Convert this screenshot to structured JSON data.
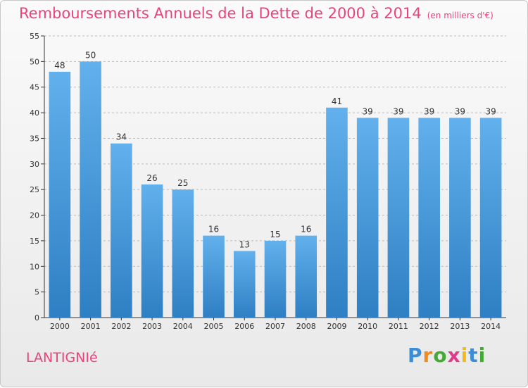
{
  "title": "Remboursements Annuels de la Dette de 2000 à 2014",
  "unit": "(en milliers d'€)",
  "town": "LANTIGNIé",
  "logo": {
    "letters": [
      "P",
      "r",
      "o",
      "x",
      "i",
      "t",
      "i"
    ],
    "colors": [
      "#3b8ed6",
      "#f28a1b",
      "#44aa33",
      "#e33a8b",
      "#f2b91b",
      "#3b8ed6",
      "#44aa33"
    ]
  },
  "colors": {
    "bar_top": "#62b0ec",
    "bar_bottom": "#2e7fc3",
    "accent": "#e8437a",
    "grid": "#bbbbbb"
  },
  "chart_data": {
    "type": "bar",
    "categories": [
      "2000",
      "2001",
      "2002",
      "2003",
      "2004",
      "2005",
      "2006",
      "2007",
      "2008",
      "2009",
      "2010",
      "2011",
      "2012",
      "2013",
      "2014"
    ],
    "values": [
      48,
      50,
      34,
      26,
      25,
      16,
      13,
      15,
      16,
      41,
      39,
      39,
      39,
      39,
      39
    ],
    "yticks": [
      0,
      5,
      10,
      15,
      20,
      25,
      30,
      35,
      40,
      45,
      50,
      55
    ],
    "ylim": [
      0,
      55
    ],
    "grid": true,
    "grid_style": "dashed"
  }
}
